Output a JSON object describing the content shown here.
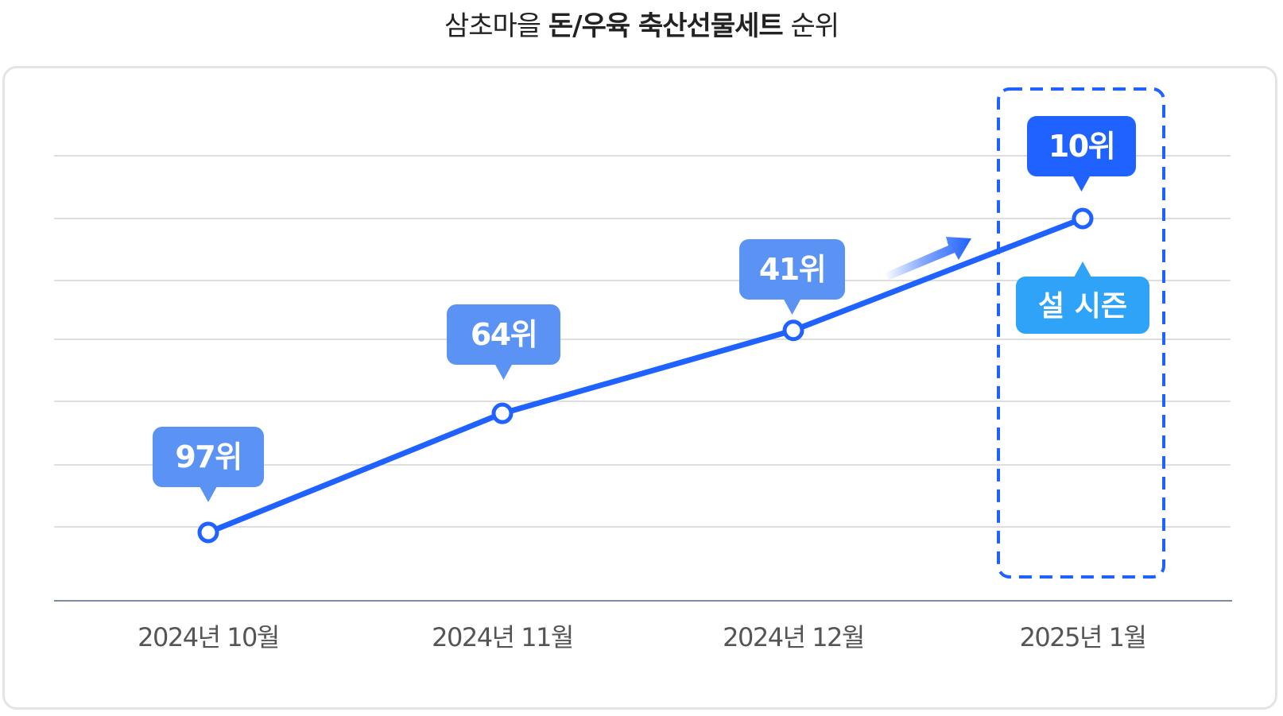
{
  "title": {
    "prefix": "삼초마을",
    "emphasis": "돈/우육 축산선물세트",
    "suffix": "순위"
  },
  "chart_data": {
    "type": "line",
    "categories": [
      "2024년 10월",
      "2024년 11월",
      "2024년 12월",
      "2025년 1월"
    ],
    "series": [
      {
        "values": [
          97,
          64,
          41,
          10
        ],
        "labels": [
          "97위",
          "64위",
          "41위",
          "10위"
        ]
      }
    ],
    "y_inverted": true,
    "grid": true,
    "highlight": {
      "category": "2025년 1월",
      "annotation": "설 시즌"
    },
    "colors": {
      "line": "#1f62ff",
      "label_bg": "#5b93f5",
      "label_bg_highlight": "#1f62ff",
      "annotation_bg": "#2ea3f8",
      "axis_text": "#555555",
      "grid": "#d3d3d3",
      "baseline": "#7d8aa3"
    }
  }
}
